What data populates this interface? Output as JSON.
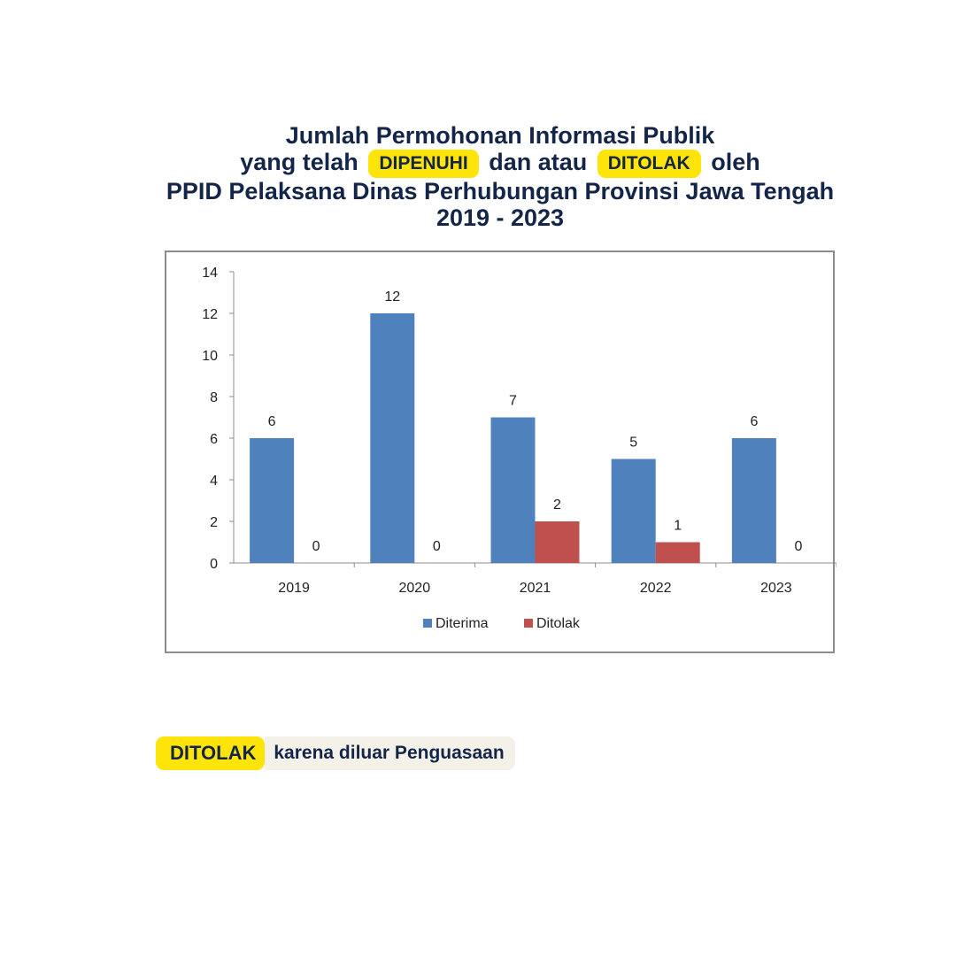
{
  "header": {
    "line1": "Jumlah Permohonan Informasi Publik",
    "line2_pre": "yang telah",
    "highlight_1": "DIPENUHI",
    "line2_mid": "dan atau",
    "highlight_2": "DITOLAK",
    "line2_post": "oleh",
    "line3": "PPID Pelaksana Dinas Perhubungan Provinsi Jawa Tengah",
    "line4": "2019 - 2023"
  },
  "chart_data": {
    "type": "bar",
    "categories": [
      "2019",
      "2020",
      "2021",
      "2022",
      "2023"
    ],
    "series": [
      {
        "name": "Diterima",
        "values": [
          6,
          12,
          7,
          5,
          6
        ],
        "color": "#4f81bd"
      },
      {
        "name": "Ditolak",
        "values": [
          0,
          0,
          2,
          1,
          0
        ],
        "color": "#c0504d"
      }
    ],
    "ylim": [
      0,
      14
    ],
    "yticks": [
      0,
      2,
      4,
      6,
      8,
      10,
      12,
      14
    ],
    "grid": false,
    "data_labels": true,
    "legend_position": "bottom"
  },
  "footnote": {
    "highlight": "DITOLAK",
    "text": "karena diluar Penguasaan"
  }
}
